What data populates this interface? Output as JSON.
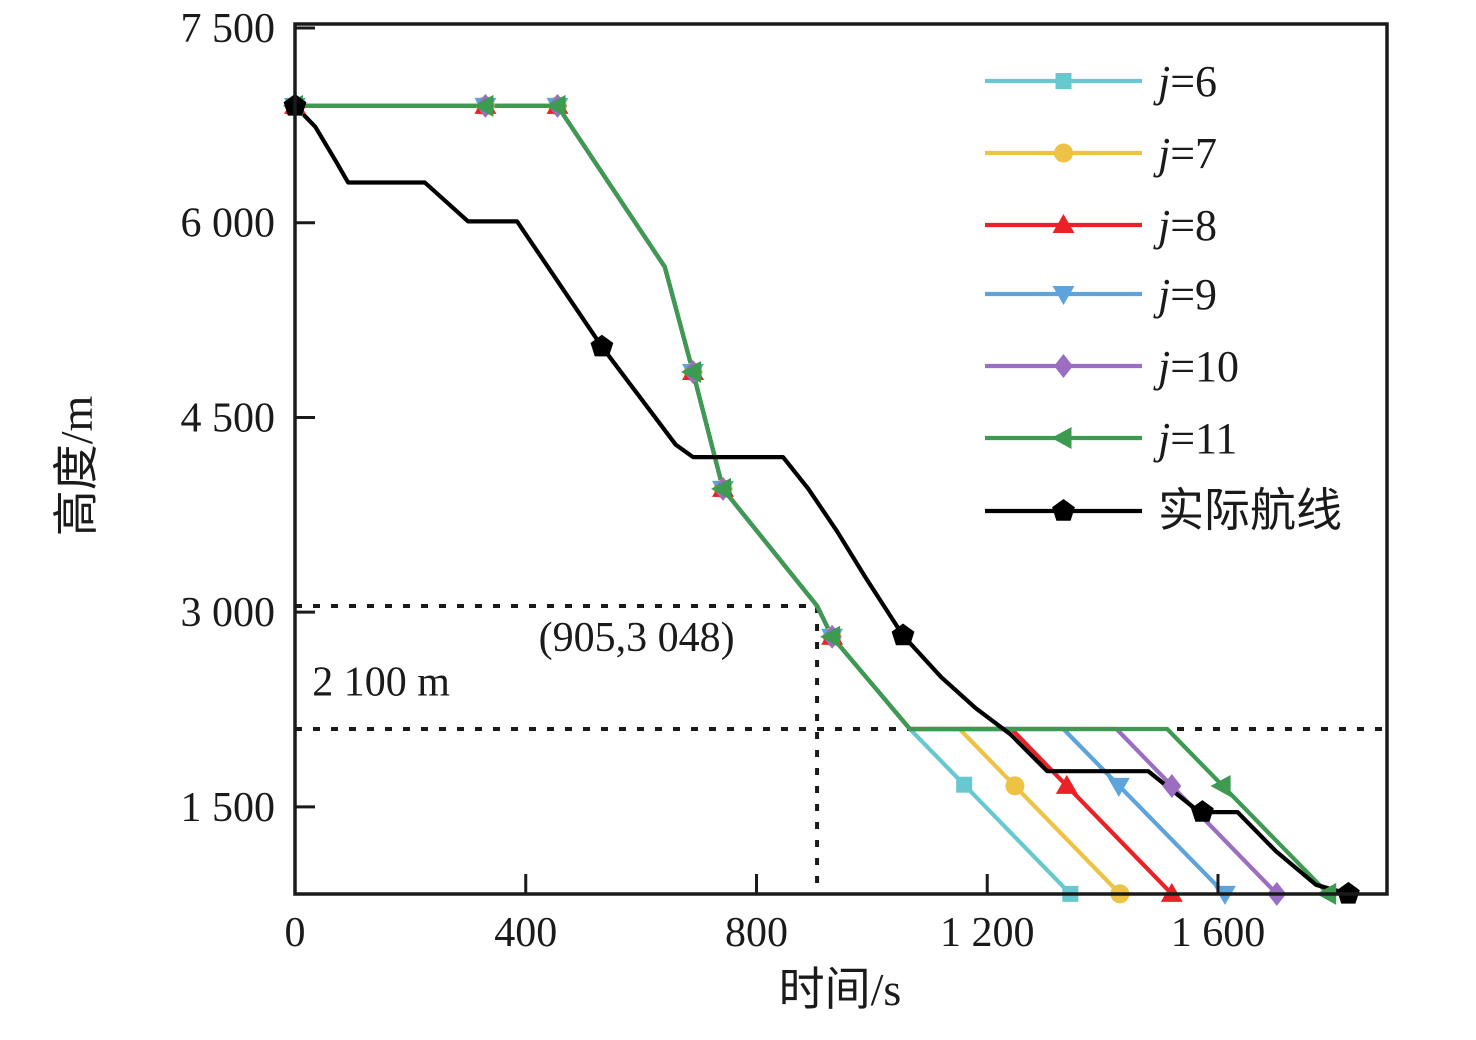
{
  "figure": {
    "background": "#ffffff",
    "description": "Altitude vs time descent profiles"
  },
  "chart_data": {
    "type": "line",
    "title": "",
    "xlabel": "时间/s",
    "ylabel": "高度/m",
    "x_range": [
      0,
      1893
    ],
    "y_range": [
      829,
      7531
    ],
    "grid": false,
    "x_ticks": [
      {
        "v": 0,
        "label": "0"
      },
      {
        "v": 400,
        "label": "400"
      },
      {
        "v": 800,
        "label": "800"
      },
      {
        "v": 1200,
        "label": "1 200"
      },
      {
        "v": 1600,
        "label": "1 600"
      }
    ],
    "y_ticks": [
      {
        "v": 1500,
        "label": "1 500"
      },
      {
        "v": 3000,
        "label": "3 000"
      },
      {
        "v": 4500,
        "label": "4 500"
      },
      {
        "v": 6000,
        "label": "6 000"
      },
      {
        "v": 7500,
        "label": "7 500"
      }
    ],
    "annotations": {
      "point_label": {
        "text": "(905,3 048)",
        "x": 905,
        "y": 3048,
        "text_x": 762,
        "text_y": 2700,
        "anchor": "end",
        "dash_color": "#1a1a1a"
      },
      "altitude_line": {
        "text": "2 100 m",
        "y": 2100,
        "text_x": 30,
        "text_y": 2360,
        "anchor": "start",
        "dash_color": "#1a1a1a"
      }
    },
    "legend": {
      "position": "upper-right-inside",
      "entries": [
        {
          "id": "j6",
          "label": "j=6",
          "italic_prefix": true
        },
        {
          "id": "j7",
          "label": "j=7",
          "italic_prefix": true
        },
        {
          "id": "j8",
          "label": "j=8",
          "italic_prefix": true
        },
        {
          "id": "j9",
          "label": "j=9",
          "italic_prefix": true
        },
        {
          "id": "j10",
          "label": "j=10",
          "italic_prefix": true
        },
        {
          "id": "j11",
          "label": "j=11",
          "italic_prefix": true
        },
        {
          "id": "actual",
          "label": "实际航线",
          "italic_prefix": false
        }
      ]
    },
    "series": [
      {
        "id": "j6",
        "name": "j=6",
        "color": "#67C9CF",
        "marker": "square",
        "points": [
          [
            0,
            6900
          ],
          [
            455,
            6900
          ],
          [
            641,
            5660
          ],
          [
            690,
            4850
          ],
          [
            742,
            3950
          ],
          [
            905,
            3048
          ],
          [
            931,
            2810
          ],
          [
            1066,
            2100
          ],
          [
            1344,
            830
          ]
        ],
        "marker_points": [
          [
            0,
            6900
          ],
          [
            330,
            6900
          ],
          [
            455,
            6900
          ],
          [
            690,
            4850
          ],
          [
            742,
            3950
          ],
          [
            931,
            2810
          ],
          [
            1160,
            1671
          ],
          [
            1344,
            830
          ]
        ]
      },
      {
        "id": "j7",
        "name": "j=7",
        "color": "#EEC245",
        "marker": "circle",
        "points": [
          [
            0,
            6900
          ],
          [
            455,
            6900
          ],
          [
            641,
            5660
          ],
          [
            690,
            4850
          ],
          [
            742,
            3950
          ],
          [
            905,
            3048
          ],
          [
            931,
            2810
          ],
          [
            1066,
            2100
          ],
          [
            1152,
            2100
          ],
          [
            1430,
            830
          ]
        ],
        "marker_points": [
          [
            0,
            6900
          ],
          [
            330,
            6900
          ],
          [
            455,
            6900
          ],
          [
            690,
            4850
          ],
          [
            742,
            3950
          ],
          [
            931,
            2810
          ],
          [
            1248,
            1662
          ],
          [
            1430,
            830
          ]
        ]
      },
      {
        "id": "j8",
        "name": "j=8",
        "color": "#EA2228",
        "marker": "triangle-up",
        "points": [
          [
            0,
            6900
          ],
          [
            455,
            6900
          ],
          [
            641,
            5660
          ],
          [
            690,
            4850
          ],
          [
            742,
            3950
          ],
          [
            905,
            3048
          ],
          [
            931,
            2810
          ],
          [
            1066,
            2100
          ],
          [
            1242,
            2100
          ],
          [
            1520,
            830
          ]
        ],
        "marker_points": [
          [
            0,
            6900
          ],
          [
            330,
            6900
          ],
          [
            455,
            6900
          ],
          [
            690,
            4850
          ],
          [
            742,
            3950
          ],
          [
            931,
            2810
          ],
          [
            1338,
            1662
          ],
          [
            1520,
            830
          ]
        ]
      },
      {
        "id": "j9",
        "name": "j=9",
        "color": "#5CA4DB",
        "marker": "triangle-down",
        "points": [
          [
            0,
            6900
          ],
          [
            455,
            6900
          ],
          [
            641,
            5660
          ],
          [
            690,
            4850
          ],
          [
            742,
            3950
          ],
          [
            905,
            3048
          ],
          [
            931,
            2810
          ],
          [
            1066,
            2100
          ],
          [
            1332,
            2100
          ],
          [
            1612,
            830
          ]
        ],
        "marker_points": [
          [
            0,
            6900
          ],
          [
            330,
            6900
          ],
          [
            455,
            6900
          ],
          [
            690,
            4850
          ],
          [
            742,
            3950
          ],
          [
            931,
            2810
          ],
          [
            1428,
            1662
          ],
          [
            1612,
            830
          ]
        ]
      },
      {
        "id": "j10",
        "name": "j=10",
        "color": "#9C6EC1",
        "marker": "diamond",
        "points": [
          [
            0,
            6900
          ],
          [
            455,
            6900
          ],
          [
            641,
            5660
          ],
          [
            690,
            4850
          ],
          [
            742,
            3950
          ],
          [
            905,
            3048
          ],
          [
            931,
            2810
          ],
          [
            1066,
            2100
          ],
          [
            1424,
            2100
          ],
          [
            1702,
            830
          ]
        ],
        "marker_points": [
          [
            0,
            6900
          ],
          [
            330,
            6900
          ],
          [
            455,
            6900
          ],
          [
            690,
            4850
          ],
          [
            742,
            3950
          ],
          [
            931,
            2810
          ],
          [
            1520,
            1661
          ],
          [
            1702,
            830
          ]
        ]
      },
      {
        "id": "j11",
        "name": "j=11",
        "color": "#3C9A51",
        "marker": "triangle-left",
        "points": [
          [
            0,
            6900
          ],
          [
            455,
            6900
          ],
          [
            641,
            5660
          ],
          [
            690,
            4850
          ],
          [
            742,
            3950
          ],
          [
            905,
            3048
          ],
          [
            931,
            2810
          ],
          [
            1066,
            2100
          ],
          [
            1512,
            2100
          ],
          [
            1791,
            830
          ]
        ],
        "marker_points": [
          [
            0,
            6900
          ],
          [
            330,
            6900
          ],
          [
            455,
            6900
          ],
          [
            690,
            4850
          ],
          [
            742,
            3950
          ],
          [
            931,
            2810
          ],
          [
            1608,
            1661
          ],
          [
            1791,
            830
          ]
        ]
      },
      {
        "id": "actual",
        "name": "实际航线",
        "color": "#000000",
        "marker": "pentagon",
        "points": [
          [
            0,
            6900
          ],
          [
            35,
            6740
          ],
          [
            70,
            6480
          ],
          [
            92,
            6310
          ],
          [
            225,
            6310
          ],
          [
            300,
            6010
          ],
          [
            385,
            6010
          ],
          [
            532,
            5045
          ],
          [
            660,
            4290
          ],
          [
            690,
            4195
          ],
          [
            846,
            4195
          ],
          [
            890,
            3950
          ],
          [
            940,
            3620
          ],
          [
            990,
            3260
          ],
          [
            1054,
            2820
          ],
          [
            1120,
            2500
          ],
          [
            1180,
            2260
          ],
          [
            1240,
            2060
          ],
          [
            1304,
            1775
          ],
          [
            1479,
            1775
          ],
          [
            1565,
            1470
          ],
          [
            1573,
            1460
          ],
          [
            1634,
            1460
          ],
          [
            1700,
            1160
          ],
          [
            1770,
            900
          ],
          [
            1826,
            830
          ]
        ],
        "marker_points": [
          [
            0,
            6900
          ],
          [
            532,
            5045
          ],
          [
            1054,
            2820
          ],
          [
            1573,
            1460
          ],
          [
            1826,
            830
          ]
        ]
      }
    ]
  }
}
